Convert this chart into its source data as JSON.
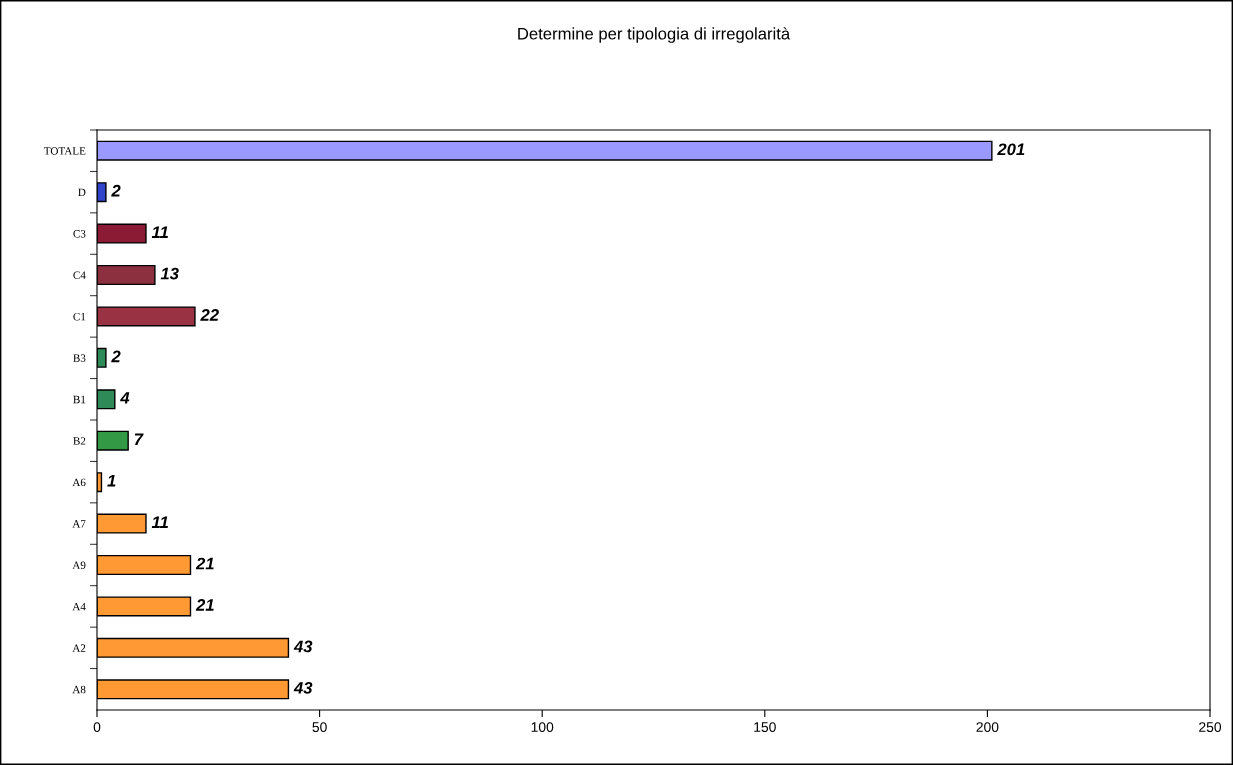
{
  "chart_data": {
    "type": "bar",
    "orientation": "horizontal",
    "title": "Determine per tipologia di irregolarità",
    "categories": [
      "TOTALE",
      "D",
      "C3",
      "C4",
      "C1",
      "B3",
      "B1",
      "B2",
      "A6",
      "A7",
      "A9",
      "A4",
      "A2",
      "A8"
    ],
    "values": [
      201,
      2,
      11,
      13,
      22,
      2,
      4,
      7,
      1,
      11,
      21,
      21,
      43,
      43
    ],
    "colors": [
      "#9999ff",
      "#3344cc",
      "#8b1a35",
      "#8c3040",
      "#993344",
      "#2e8b57",
      "#2e8b57",
      "#339944",
      "#ff9933",
      "#ff9933",
      "#ff9933",
      "#ff9933",
      "#ff9933",
      "#ff9933"
    ],
    "xlim": [
      0,
      250
    ],
    "xticks": [
      0,
      50,
      100,
      150,
      200,
      250
    ],
    "data_labels": true,
    "grid": false,
    "legend": false
  }
}
